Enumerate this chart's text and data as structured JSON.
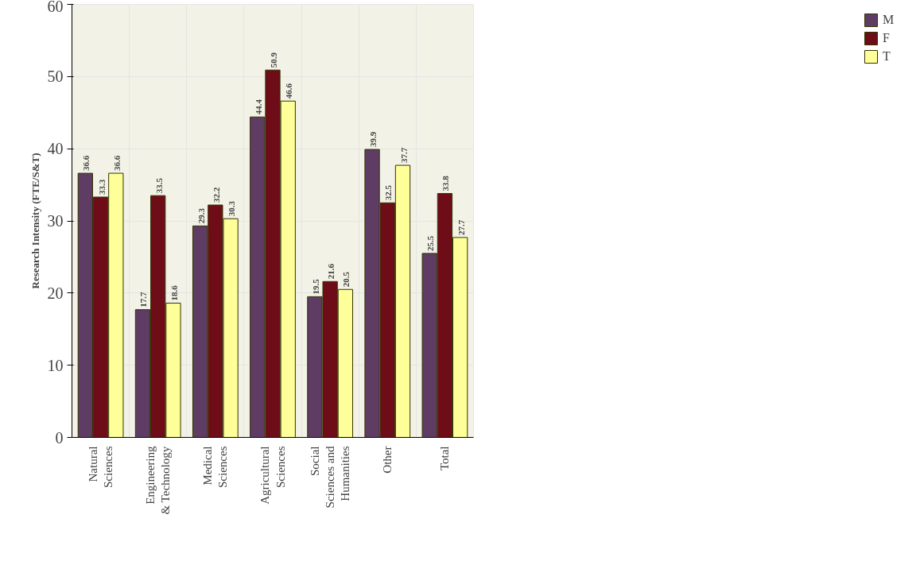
{
  "chart_data": {
    "type": "bar",
    "ylabel": "Research Intensity (FTE/S&T)",
    "categories": [
      "Natural Sciences",
      "Engineering & Technology",
      "Medical Sciences",
      "Agricultural Sciences",
      "Social Sciences and Humanities",
      "Other",
      "Total"
    ],
    "series": [
      {
        "name": "M",
        "color": "#5e3c63",
        "values": [
          36.6,
          17.7,
          29.3,
          44.4,
          19.5,
          39.9,
          25.5
        ]
      },
      {
        "name": "F",
        "color": "#6e0d18",
        "values": [
          33.3,
          33.5,
          32.2,
          50.9,
          21.6,
          32.5,
          33.8
        ]
      },
      {
        "name": "T",
        "color": "#ffff99",
        "values": [
          36.6,
          18.6,
          30.3,
          46.6,
          20.5,
          37.7,
          27.7
        ]
      }
    ],
    "ylim": [
      0,
      60
    ],
    "yticks": [
      0,
      10,
      20,
      30,
      40,
      50,
      60
    ],
    "grid": true,
    "legend": "right",
    "data_labels": true
  }
}
